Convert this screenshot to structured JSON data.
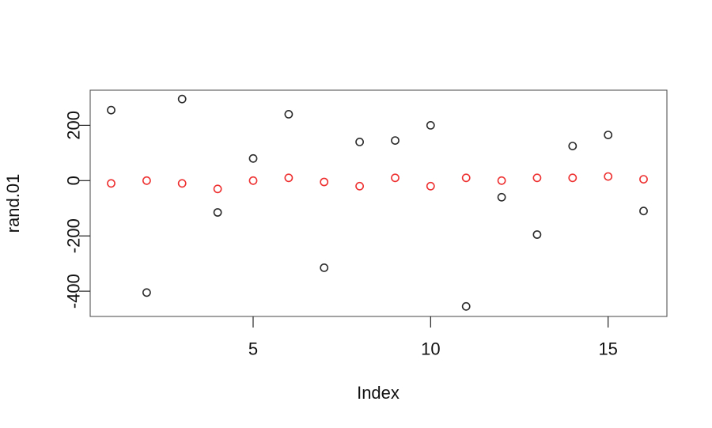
{
  "chart_data": {
    "type": "scatter",
    "title": "",
    "xlabel": "Index",
    "ylabel": "rand.01",
    "x": [
      1,
      2,
      3,
      4,
      5,
      6,
      7,
      8,
      9,
      10,
      11,
      12,
      13,
      14,
      15,
      16
    ],
    "series": [
      {
        "name": "black-series",
        "marker": "open-circle",
        "color": "#2b2b2b",
        "values": [
          255,
          -405,
          295,
          -115,
          80,
          240,
          -315,
          140,
          145,
          200,
          -455,
          -60,
          -195,
          125,
          165,
          -110
        ]
      },
      {
        "name": "red-series",
        "marker": "open-circle",
        "color": "#ee3030",
        "values": [
          -10,
          0,
          -10,
          -30,
          0,
          10,
          -5,
          -20,
          10,
          -20,
          10,
          0,
          10,
          10,
          15,
          5
        ]
      }
    ],
    "xticks": [
      5,
      10,
      15
    ],
    "yticks": [
      200,
      0,
      -200,
      -400
    ],
    "xlim": [
      0.4,
      16.6
    ],
    "ylim": [
      -490,
      327
    ],
    "grid": false,
    "legend_position": "none",
    "frame_color": "#555555",
    "tick_color": "#222222"
  }
}
